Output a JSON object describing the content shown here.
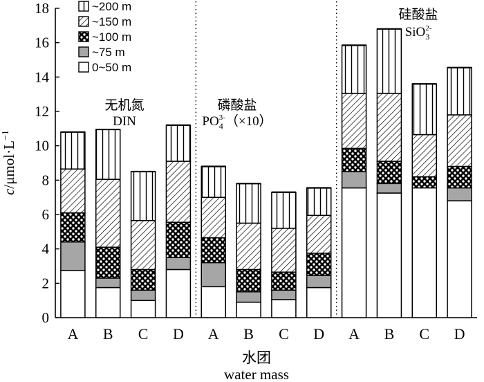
{
  "chart_data": {
    "type": "bar",
    "stacked": true,
    "x": {
      "title_cn": "水团",
      "title_en": "water mass"
    },
    "y": {
      "title_italic": "c",
      "title_rest": "/μmol·L",
      "title_sup": "−1",
      "min": 0,
      "max": 18,
      "ticks": [
        0,
        2,
        4,
        6,
        8,
        10,
        12,
        14,
        16,
        18
      ]
    },
    "legend": {
      "position": "top-left",
      "items": [
        {
          "name": "~200 m",
          "pattern": "vlines"
        },
        {
          "name": "~150 m",
          "pattern": "diag"
        },
        {
          "name": "~100 m",
          "pattern": "dots"
        },
        {
          "name": "~75 m",
          "pattern": "gray"
        },
        {
          "name": "0~50 m",
          "pattern": "white"
        }
      ]
    },
    "series_order": [
      "0~50 m",
      "~75 m",
      "~100 m",
      "~150 m",
      "~200 m"
    ],
    "panels": [
      {
        "label_cn": "无机氮",
        "label_en": "DIN",
        "categories": [
          "A",
          "B",
          "C",
          "D"
        ],
        "stacks": [
          [
            2.75,
            1.65,
            1.7,
            2.55,
            2.15
          ],
          [
            1.75,
            0.55,
            1.8,
            3.95,
            2.9
          ],
          [
            1.0,
            0.6,
            1.2,
            2.85,
            2.85
          ],
          [
            2.8,
            0.7,
            2.05,
            3.55,
            2.1
          ]
        ],
        "totals": [
          10.8,
          10.95,
          8.5,
          11.2
        ]
      },
      {
        "label_cn": "磷酸盐",
        "label_en_main": "PO",
        "label_en_sub": "4",
        "label_en_sup": "3-",
        "label_en_suffix": "（×10）",
        "categories": [
          "A",
          "B",
          "C",
          "D"
        ],
        "stacks": [
          [
            1.8,
            1.4,
            1.45,
            2.35,
            1.8
          ],
          [
            0.9,
            0.6,
            1.3,
            2.7,
            2.3
          ],
          [
            1.05,
            0.55,
            1.05,
            2.55,
            2.1
          ],
          [
            1.75,
            0.7,
            1.3,
            2.2,
            1.6
          ]
        ],
        "totals": [
          8.8,
          7.8,
          7.3,
          7.55
        ]
      },
      {
        "label_cn": "硅酸盐",
        "label_en_main": "SiO",
        "label_en_sub": "3",
        "label_en_sup": "2-",
        "label_en_suffix": "",
        "categories": [
          "A",
          "B",
          "C",
          "D"
        ],
        "stacks": [
          [
            7.55,
            0.95,
            1.35,
            3.2,
            2.8
          ],
          [
            7.25,
            0.55,
            1.3,
            3.95,
            3.75
          ],
          [
            7.55,
            0.0,
            0.65,
            2.45,
            2.95
          ],
          [
            6.8,
            0.75,
            1.25,
            3.0,
            2.75
          ]
        ],
        "totals": [
          15.85,
          16.8,
          13.6,
          14.55
        ]
      }
    ]
  }
}
